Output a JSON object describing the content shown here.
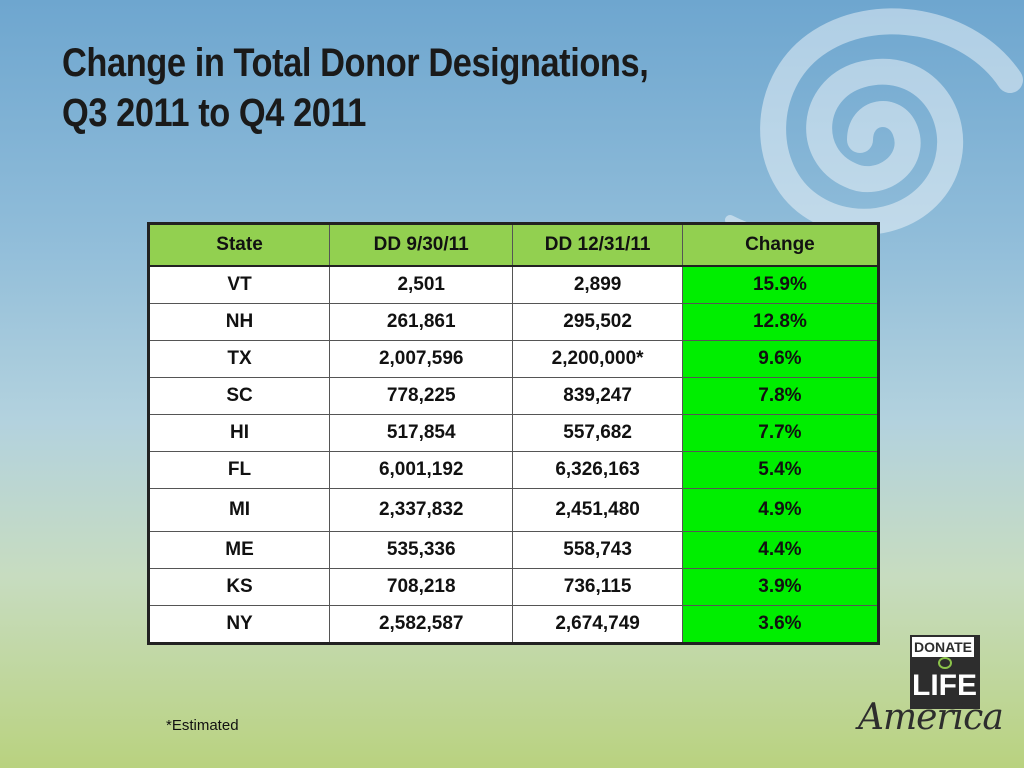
{
  "slide": {
    "title_line1": "Change in Total Donor Designations,",
    "title_line2": "Q3 2011 to Q4 2011",
    "footnote": "*Estimated"
  },
  "table": {
    "headers": [
      "State",
      "DD 9/30/11",
      "DD 12/31/11",
      "Change"
    ],
    "rows": [
      [
        "VT",
        "2,501",
        "2,899",
        "15.9%"
      ],
      [
        "NH",
        "261,861",
        "295,502",
        "12.8%"
      ],
      [
        "TX",
        "2,007,596",
        "2,200,000*",
        "9.6%"
      ],
      [
        "SC",
        "778,225",
        "839,247",
        "7.8%"
      ],
      [
        "HI",
        "517,854",
        "557,682",
        "7.7%"
      ],
      [
        "FL",
        "6,001,192",
        "6,326,163",
        "5.4%"
      ],
      [
        "MI",
        "2,337,832",
        "2,451,480",
        "4.9%"
      ],
      [
        "ME",
        "535,336",
        "558,743",
        "4.4%"
      ],
      [
        "KS",
        "708,218",
        "736,115",
        "3.9%"
      ],
      [
        "NY",
        "2,582,587",
        "2,674,749",
        "3.6%"
      ]
    ]
  },
  "logo": {
    "top": "DONATE",
    "middle": "LIFE",
    "bottom": "America"
  },
  "colors": {
    "header_fill": "#92d050",
    "change_fill": "#00ee00"
  }
}
